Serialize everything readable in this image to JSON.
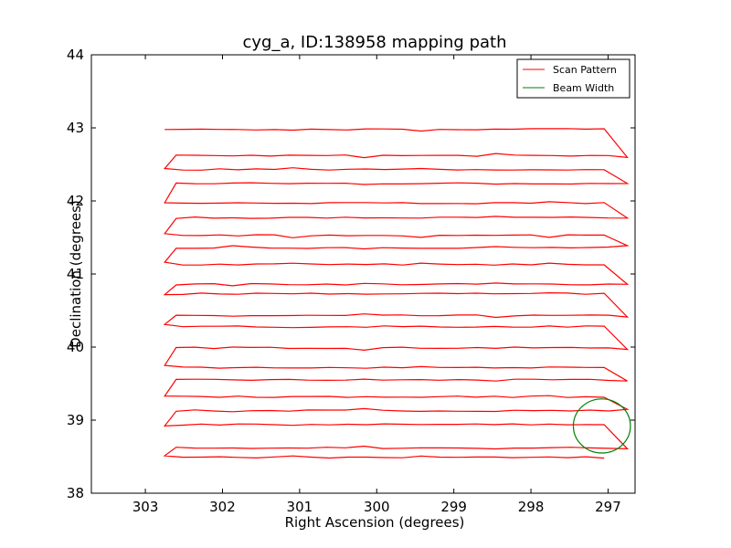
{
  "chart_data": {
    "type": "line",
    "title": "cyg_a, ID:138958 mapping path",
    "xlabel": "Right Ascension (degrees)",
    "ylabel": "Declination (degrees)",
    "xlim": [
      303.7,
      296.65
    ],
    "ylim": [
      38,
      44
    ],
    "xticks": [
      303,
      302,
      301,
      300,
      299,
      298,
      297
    ],
    "xtick_labels": [
      "303",
      "302",
      "301",
      "300",
      "299",
      "298",
      "297"
    ],
    "yticks": [
      38,
      39,
      40,
      41,
      42,
      43,
      44
    ],
    "ytick_labels": [
      "38",
      "39",
      "40",
      "41",
      "42",
      "43",
      "44"
    ],
    "legend": {
      "position": "top-right",
      "entries": [
        {
          "label": "Scan Pattern",
          "color": "#ff0000"
        },
        {
          "label": "Beam Width",
          "color": "#008000"
        }
      ]
    },
    "series": [
      {
        "name": "Scan Pattern",
        "color": "#ff0000",
        "scan_rows": [
          {
            "dec": 38.49,
            "ra_start": 302.75,
            "ra_end": 297.05
          },
          {
            "dec": 38.62,
            "ra_start": 302.6,
            "ra_end": 296.75
          },
          {
            "dec": 38.94,
            "ra_start": 302.75,
            "ra_end": 297.05
          },
          {
            "dec": 39.13,
            "ra_start": 302.6,
            "ra_end": 296.75
          },
          {
            "dec": 39.32,
            "ra_start": 302.75,
            "ra_end": 297.05
          },
          {
            "dec": 39.55,
            "ra_start": 302.6,
            "ra_end": 296.75
          },
          {
            "dec": 39.72,
            "ra_start": 302.75,
            "ra_end": 297.05
          },
          {
            "dec": 39.99,
            "ra_start": 302.6,
            "ra_end": 296.75
          },
          {
            "dec": 40.28,
            "ra_start": 302.75,
            "ra_end": 297.05
          },
          {
            "dec": 40.43,
            "ra_start": 302.6,
            "ra_end": 296.75
          },
          {
            "dec": 40.73,
            "ra_start": 302.75,
            "ra_end": 297.05
          },
          {
            "dec": 40.86,
            "ra_start": 302.6,
            "ra_end": 296.75
          },
          {
            "dec": 41.13,
            "ra_start": 302.75,
            "ra_end": 297.05
          },
          {
            "dec": 41.36,
            "ra_start": 302.6,
            "ra_end": 296.75
          },
          {
            "dec": 41.53,
            "ra_start": 302.75,
            "ra_end": 297.05
          },
          {
            "dec": 41.77,
            "ra_start": 302.6,
            "ra_end": 296.75
          },
          {
            "dec": 41.97,
            "ra_start": 302.75,
            "ra_end": 297.05
          },
          {
            "dec": 42.24,
            "ra_start": 302.6,
            "ra_end": 296.75
          },
          {
            "dec": 42.43,
            "ra_start": 302.75,
            "ra_end": 297.05
          },
          {
            "dec": 42.62,
            "ra_start": 302.6,
            "ra_end": 296.75
          },
          {
            "dec": 42.98,
            "ra_start": 302.75,
            "ra_end": 297.05
          }
        ]
      },
      {
        "name": "Beam Width",
        "color": "#008000",
        "shape": "circle",
        "center_ra": 297.08,
        "center_dec": 38.92,
        "radius_deg": 0.37
      }
    ]
  }
}
